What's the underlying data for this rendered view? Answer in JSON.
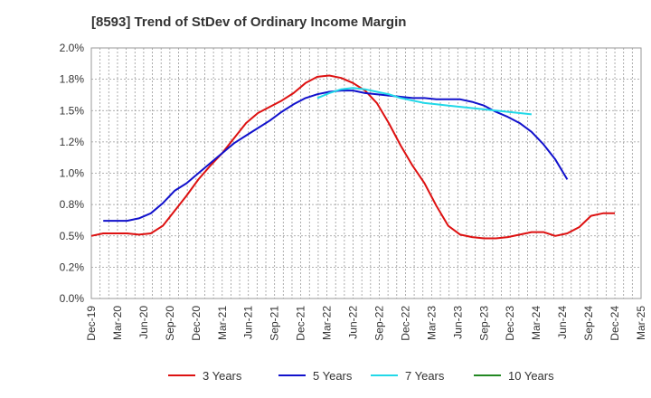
{
  "chart_data": {
    "type": "line",
    "title": "[8593]  Trend of StDev of Ordinary Income Margin",
    "x_labels": [
      "Dec-19",
      "Mar-20",
      "Jun-20",
      "Sep-20",
      "Dec-20",
      "Mar-21",
      "Jun-21",
      "Sep-21",
      "Dec-21",
      "Mar-22",
      "Jun-22",
      "Sep-22",
      "Dec-22",
      "Mar-23",
      "Jun-23",
      "Sep-23",
      "Dec-23",
      "Mar-24",
      "Jun-24",
      "Sep-24",
      "Dec-24",
      "Mar-25"
    ],
    "y_ticks": [
      "2.0%",
      "1.8%",
      "1.5%",
      "1.2%",
      "1.0%",
      "0.8%",
      "0.5%",
      "0.2%",
      "0.0%"
    ],
    "ylim": [
      0.0,
      2.0
    ],
    "grid": true,
    "legend_position": "bottom",
    "series": [
      {
        "name": "3 Years",
        "color": "#dd1111",
        "values": [
          0.5,
          0.52,
          0.52,
          0.52,
          0.51,
          0.52,
          0.58,
          0.7,
          0.82,
          0.95,
          1.06,
          1.16,
          1.28,
          1.4,
          1.48,
          1.53,
          1.58,
          1.64,
          1.72,
          1.77,
          1.78,
          1.76,
          1.72,
          1.66,
          1.56,
          1.4,
          1.22,
          1.06,
          0.92,
          0.74,
          0.58,
          0.51,
          0.49,
          0.48,
          0.48,
          0.49,
          0.51,
          0.53,
          0.53,
          0.5,
          0.52,
          0.57,
          0.66,
          0.68,
          0.68
        ]
      },
      {
        "name": "5 Years",
        "color": "#1111cc",
        "values": [
          null,
          0.62,
          0.62,
          0.62,
          0.64,
          0.68,
          0.76,
          0.86,
          0.92,
          1.0,
          1.08,
          1.16,
          1.24,
          1.3,
          1.36,
          1.42,
          1.49,
          1.55,
          1.6,
          1.63,
          1.65,
          1.66,
          1.66,
          1.64,
          1.63,
          1.62,
          1.61,
          1.6,
          1.6,
          1.59,
          1.59,
          1.59,
          1.57,
          1.54,
          1.49,
          1.45,
          1.4,
          1.33,
          1.23,
          1.11,
          0.95
        ]
      },
      {
        "name": "7 Years",
        "color": "#22d8e8",
        "values": [
          null,
          null,
          null,
          null,
          null,
          null,
          null,
          null,
          null,
          null,
          null,
          null,
          null,
          null,
          null,
          null,
          null,
          null,
          null,
          1.6,
          1.64,
          1.67,
          1.68,
          1.67,
          1.65,
          1.63,
          1.6,
          1.58,
          1.56,
          1.55,
          1.54,
          1.53,
          1.52,
          1.51,
          1.5,
          1.49,
          1.48,
          1.47
        ]
      },
      {
        "name": "10 Years",
        "color": "#228822",
        "values": []
      }
    ]
  }
}
